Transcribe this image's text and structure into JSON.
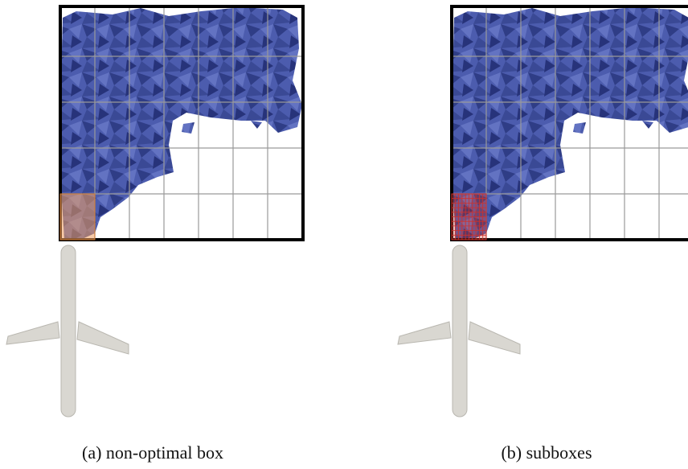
{
  "figures": [
    {
      "caption": "(a) non-optimal box"
    },
    {
      "caption": "(b) subboxes"
    }
  ]
}
